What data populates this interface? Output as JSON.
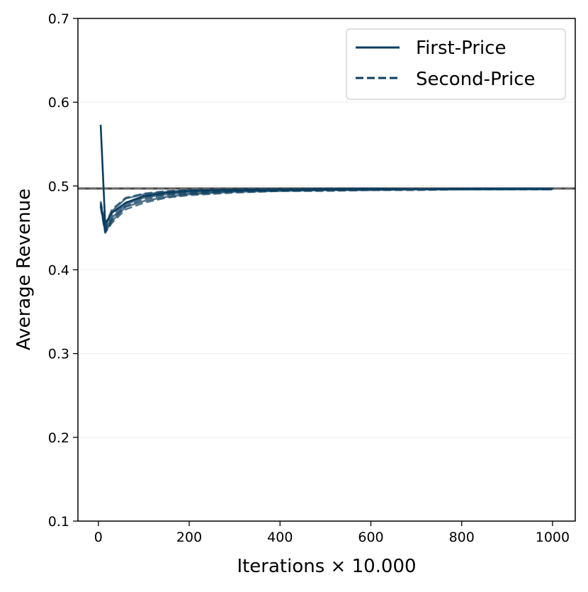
{
  "chart_data": {
    "type": "line",
    "title": "",
    "xlabel": "Iterations × 10.000",
    "ylabel": "Average Revenue",
    "xlim": [
      -45,
      1050
    ],
    "ylim": [
      0.1,
      0.7
    ],
    "xticks": [
      0,
      200,
      400,
      600,
      800,
      1000
    ],
    "xtick_labels": [
      "0",
      "200",
      "400",
      "600",
      "800",
      "1000"
    ],
    "yticks": [
      0.1,
      0.2,
      0.3,
      0.4,
      0.5,
      0.6,
      0.7
    ],
    "ytick_labels": [
      "0.1",
      "0.2",
      "0.3",
      "0.4",
      "0.5",
      "0.6",
      "0.7"
    ],
    "grid": "horizontal, faint",
    "legend": {
      "placement": "top-right",
      "entries": [
        {
          "label": "First-Price",
          "style": "solid"
        },
        {
          "label": "Second-Price",
          "style": "dashed"
        }
      ]
    },
    "reference_line": {
      "y": 0.497,
      "color": "#333333"
    },
    "colors": {
      "series": "#0b3d5e",
      "reference": "#333333"
    },
    "series": [
      {
        "style": "solid",
        "x": [
          5,
          15,
          30,
          60,
          100,
          150,
          200,
          300,
          400,
          500,
          600,
          700,
          800,
          900,
          1000
        ],
        "y": [
          0.573,
          0.455,
          0.468,
          0.48,
          0.488,
          0.492,
          0.494,
          0.495,
          0.496,
          0.496,
          0.496,
          0.496,
          0.496,
          0.497,
          0.497
        ]
      },
      {
        "style": "solid",
        "x": [
          5,
          15,
          30,
          60,
          100,
          150,
          200,
          300,
          400,
          500,
          600,
          700,
          800,
          900,
          1000
        ],
        "y": [
          0.48,
          0.45,
          0.47,
          0.485,
          0.49,
          0.493,
          0.495,
          0.496,
          0.496,
          0.496,
          0.497,
          0.496,
          0.497,
          0.497,
          0.496
        ]
      },
      {
        "style": "solid",
        "x": [
          5,
          15,
          30,
          60,
          100,
          150,
          200,
          300,
          400,
          500,
          600,
          700,
          800,
          900,
          1000
        ],
        "y": [
          0.478,
          0.447,
          0.462,
          0.478,
          0.486,
          0.49,
          0.492,
          0.494,
          0.495,
          0.495,
          0.496,
          0.496,
          0.496,
          0.496,
          0.496
        ]
      },
      {
        "style": "solid",
        "x": [
          5,
          15,
          30,
          60,
          100,
          150,
          200,
          300,
          400,
          500,
          600,
          700,
          800,
          900,
          1000
        ],
        "y": [
          0.476,
          0.445,
          0.458,
          0.475,
          0.482,
          0.487,
          0.49,
          0.493,
          0.494,
          0.495,
          0.495,
          0.496,
          0.496,
          0.496,
          0.497
        ]
      },
      {
        "style": "dashed",
        "x": [
          5,
          15,
          30,
          60,
          100,
          150,
          200,
          300,
          400,
          500,
          600,
          700,
          800,
          900,
          1000
        ],
        "y": [
          0.482,
          0.453,
          0.472,
          0.486,
          0.491,
          0.494,
          0.495,
          0.496,
          0.496,
          0.497,
          0.497,
          0.496,
          0.497,
          0.497,
          0.497
        ]
      },
      {
        "style": "dashed",
        "x": [
          5,
          15,
          30,
          60,
          100,
          150,
          200,
          300,
          400,
          500,
          600,
          700,
          800,
          900,
          1000
        ],
        "y": [
          0.479,
          0.449,
          0.465,
          0.48,
          0.487,
          0.491,
          0.493,
          0.495,
          0.495,
          0.496,
          0.496,
          0.496,
          0.496,
          0.496,
          0.496
        ]
      },
      {
        "style": "dashed",
        "x": [
          5,
          15,
          30,
          60,
          100,
          150,
          200,
          300,
          400,
          500,
          600,
          700,
          800,
          900,
          1000
        ],
        "y": [
          0.477,
          0.446,
          0.46,
          0.476,
          0.484,
          0.489,
          0.491,
          0.494,
          0.495,
          0.495,
          0.496,
          0.496,
          0.496,
          0.497,
          0.496
        ]
      },
      {
        "style": "dashed",
        "x": [
          5,
          15,
          30,
          60,
          100,
          150,
          200,
          300,
          400,
          500,
          600,
          700,
          800,
          900,
          1000
        ],
        "y": [
          0.475,
          0.444,
          0.456,
          0.472,
          0.48,
          0.486,
          0.489,
          0.492,
          0.494,
          0.494,
          0.495,
          0.495,
          0.496,
          0.496,
          0.496
        ]
      }
    ]
  }
}
